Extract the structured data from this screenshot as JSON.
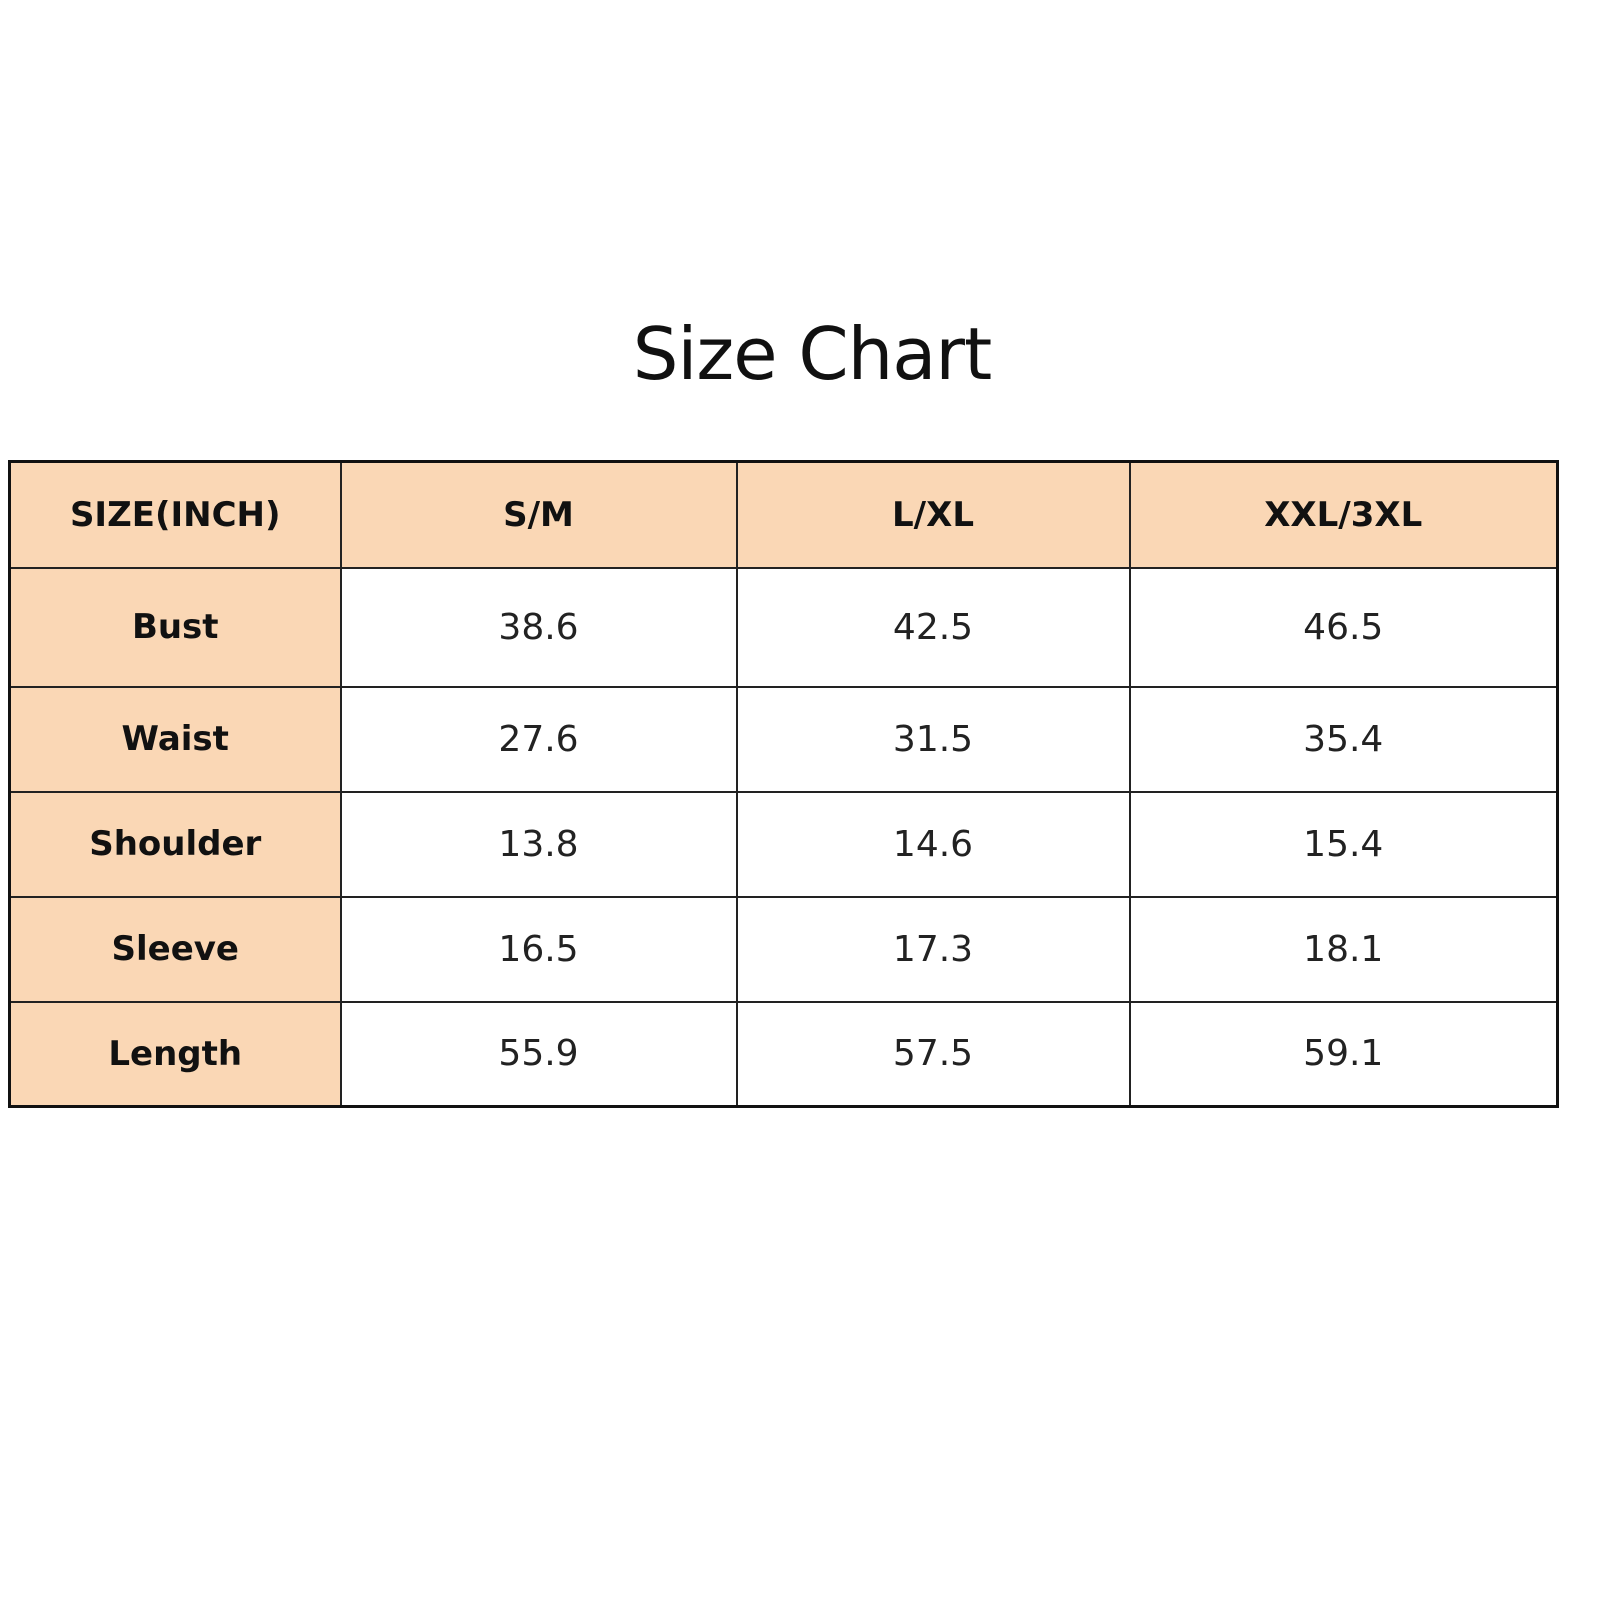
{
  "title": "Size Chart",
  "colors": {
    "header_fill": "#FAD7B5",
    "border": "#111111"
  },
  "table": {
    "columns": [
      "SIZE(INCH)",
      "S/M",
      "L/XL",
      "XXL/3XL"
    ],
    "rows": [
      {
        "label": "Bust",
        "values": [
          "38.6",
          "42.5",
          "46.5"
        ]
      },
      {
        "label": "Waist",
        "values": [
          "27.6",
          "31.5",
          "35.4"
        ]
      },
      {
        "label": "Shoulder",
        "values": [
          "13.8",
          "14.6",
          "15.4"
        ]
      },
      {
        "label": "Sleeve",
        "values": [
          "16.5",
          "17.3",
          "18.1"
        ]
      },
      {
        "label": "Length",
        "values": [
          "55.9",
          "57.5",
          "59.1"
        ]
      }
    ]
  }
}
